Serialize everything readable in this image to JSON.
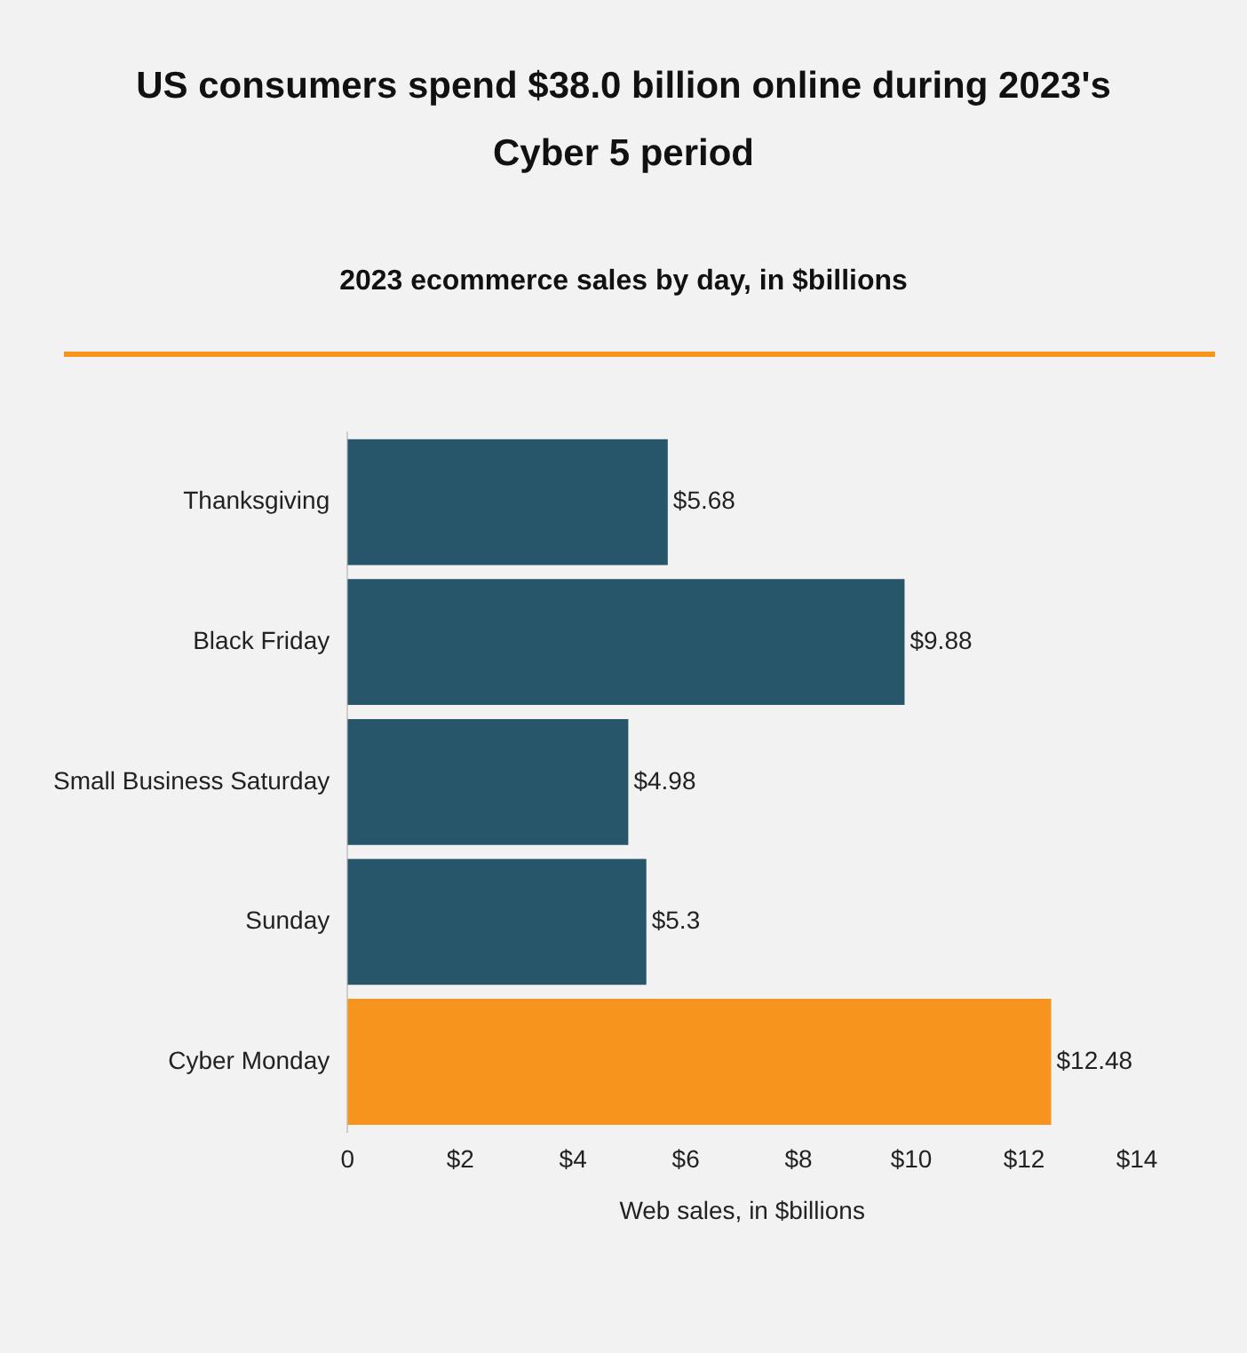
{
  "chart_data": {
    "type": "bar",
    "orientation": "horizontal",
    "title": "US consumers spend $38.0 billion online during 2023's Cyber 5 period",
    "subtitle": "2023 ecommerce sales by day, in $billions",
    "xlabel": "Web sales, in $billions",
    "categories": [
      "Thanksgiving",
      "Black Friday",
      "Small Business Saturday",
      "Sunday",
      "Cyber Monday"
    ],
    "values": [
      5.68,
      9.88,
      4.98,
      5.3,
      12.48
    ],
    "colors": [
      "#27566b",
      "#27566b",
      "#27566b",
      "#27566b",
      "#f7941d"
    ],
    "value_labels": [
      "$5.68",
      "$9.88",
      "$4.98",
      "$5.3",
      "$12.48"
    ],
    "xlim": [
      0,
      14
    ],
    "xticks": [
      0,
      {
        "value": 2,
        "label": "$2"
      },
      {
        "value": 4,
        "label": "$4"
      },
      {
        "value": 6,
        "label": "$6"
      },
      {
        "value": 8,
        "label": "$8"
      },
      {
        "value": 10,
        "label": "$10"
      },
      {
        "value": 12,
        "label": "$12"
      },
      {
        "value": 14,
        "label": "$14"
      }
    ],
    "grid": false,
    "legend": false
  }
}
